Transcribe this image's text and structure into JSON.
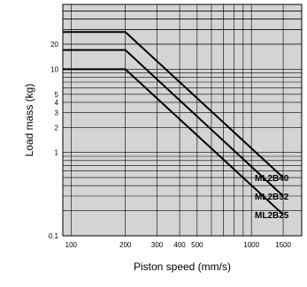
{
  "chart_data": {
    "type": "line",
    "x_scale": "log",
    "y_scale": "log",
    "xlabel": "Piston speed (mm/s)",
    "ylabel": "Load mass (kg)",
    "xlim": [
      90,
      1900
    ],
    "ylim": [
      0.1,
      60
    ],
    "x_ticks": [
      {
        "value": 100,
        "label": "100"
      },
      {
        "value": 200,
        "label": "200"
      },
      {
        "value": 300,
        "label": "300"
      },
      {
        "value": 400,
        "label": "400"
      },
      {
        "value": 500,
        "label": "500"
      },
      {
        "value": 1000,
        "label": "1000"
      },
      {
        "value": 1500,
        "label": "1500"
      }
    ],
    "y_ticks": [
      {
        "value": 0.1,
        "label": "0.1"
      },
      {
        "value": 1,
        "label": "1"
      },
      {
        "value": 2,
        "label": "2"
      },
      {
        "value": 3,
        "label": "3"
      },
      {
        "value": 4,
        "label": "4"
      },
      {
        "value": 5,
        "label": "5"
      },
      {
        "value": 10,
        "label": "10"
      },
      {
        "value": 20,
        "label": "20"
      }
    ],
    "grid": true,
    "series": [
      {
        "name": "ML2B40",
        "points": [
          [
            90,
            28
          ],
          [
            200,
            28
          ],
          [
            1500,
            0.5
          ]
        ]
      },
      {
        "name": "ML2B32",
        "points": [
          [
            90,
            17
          ],
          [
            200,
            17
          ],
          [
            1500,
            0.3
          ]
        ]
      },
      {
        "name": "ML2B25",
        "points": [
          [
            90,
            10
          ],
          [
            200,
            10
          ],
          [
            1500,
            0.18
          ]
        ]
      }
    ]
  }
}
